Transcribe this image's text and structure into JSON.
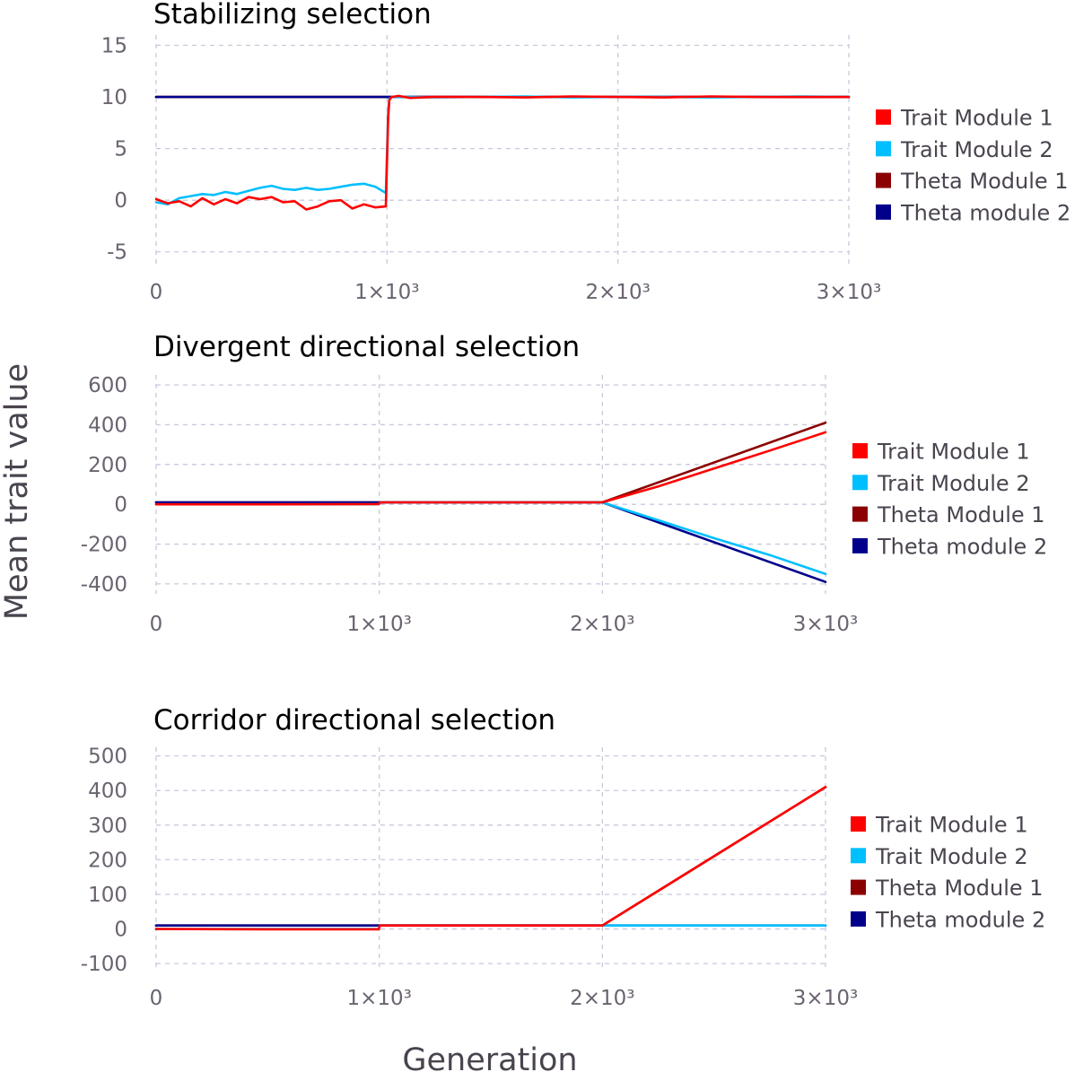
{
  "axis": {
    "ylabel": "Mean trait value",
    "xlabel": "Generation"
  },
  "legend_labels": [
    "Trait Module 1",
    "Trait Module 2",
    "Theta Module 1",
    "Theta module 2"
  ],
  "colors": {
    "trait1": "#ff0000",
    "trait2": "#00bfff",
    "theta1": "#8b0000",
    "theta2": "#00008b"
  },
  "chart_data": [
    {
      "type": "line",
      "title": "Stabilizing selection",
      "xlim": [
        0,
        3000
      ],
      "ylim": [
        -6.5,
        16
      ],
      "yticks": [
        -5,
        0,
        5,
        10,
        15
      ],
      "ytick_labels": [
        "-5",
        "0",
        "5",
        "10",
        "15"
      ],
      "xticks": [
        0,
        1000,
        2000,
        3000
      ],
      "xtick_labels": [
        "0",
        "1×10³",
        "2×10³",
        "3×10³"
      ],
      "series": [
        {
          "name": "Trait Module 1",
          "x": [
            0,
            50,
            100,
            150,
            200,
            250,
            300,
            350,
            400,
            450,
            500,
            550,
            600,
            650,
            700,
            750,
            800,
            850,
            900,
            950,
            995,
            1005,
            1010,
            1020,
            1050,
            1100,
            1200,
            1400,
            1600,
            1800,
            2000,
            2200,
            2400,
            2600,
            2800,
            3000
          ],
          "y": [
            0.1,
            -0.3,
            -0.1,
            -0.6,
            0.2,
            -0.4,
            0.1,
            -0.3,
            0.3,
            0.1,
            0.3,
            -0.2,
            -0.1,
            -0.9,
            -0.6,
            -0.1,
            0.0,
            -0.8,
            -0.4,
            -0.7,
            -0.6,
            8.0,
            9.7,
            10.0,
            10.1,
            9.9,
            10.0,
            10.0,
            9.95,
            10.05,
            10.0,
            9.95,
            10.05,
            10.0,
            10.0,
            10.0
          ]
        },
        {
          "name": "Trait Module 2",
          "x": [
            0,
            50,
            100,
            150,
            200,
            250,
            300,
            350,
            400,
            450,
            500,
            550,
            600,
            650,
            700,
            750,
            800,
            850,
            900,
            950,
            995,
            1005,
            1010,
            1020,
            1050,
            1100,
            1200,
            1400,
            1600,
            1800,
            2000,
            2200,
            2400,
            2600,
            2800,
            3000
          ],
          "y": [
            -0.2,
            -0.4,
            0.2,
            0.4,
            0.6,
            0.5,
            0.8,
            0.6,
            0.9,
            1.2,
            1.4,
            1.1,
            1.0,
            1.2,
            1.0,
            1.1,
            1.3,
            1.5,
            1.6,
            1.3,
            0.7,
            8.5,
            9.8,
            10.0,
            10.0,
            10.0,
            9.95,
            10.0,
            10.05,
            9.95,
            10.0,
            10.0,
            9.95,
            10.0,
            10.05,
            10.0
          ]
        },
        {
          "name": "Theta Module 1",
          "x": [
            0,
            3000
          ],
          "y": [
            10,
            10
          ]
        },
        {
          "name": "Theta module 2",
          "x": [
            0,
            3000
          ],
          "y": [
            10,
            10
          ]
        }
      ]
    },
    {
      "type": "line",
      "title": "Divergent directional selection",
      "xlim": [
        0,
        3000
      ],
      "ylim": [
        -450,
        650
      ],
      "yticks": [
        -400,
        -200,
        0,
        200,
        400,
        600
      ],
      "ytick_labels": [
        "-400",
        "-200",
        "0",
        "200",
        "400",
        "600"
      ],
      "xticks": [
        0,
        1000,
        2000,
        3000
      ],
      "xtick_labels": [
        "0",
        "1×10³",
        "2×10³",
        "3×10³"
      ],
      "series": [
        {
          "name": "Trait Module 1",
          "x": [
            0,
            500,
            998,
            1002,
            1500,
            2000,
            2250,
            2500,
            2750,
            3000
          ],
          "y": [
            0,
            0,
            1,
            10,
            10,
            10,
            90,
            180,
            270,
            362
          ]
        },
        {
          "name": "Trait Module 2",
          "x": [
            0,
            500,
            998,
            1002,
            1500,
            2000,
            2250,
            2500,
            2750,
            3000
          ],
          "y": [
            0,
            0,
            1,
            10,
            10,
            10,
            -80,
            -170,
            -255,
            -350
          ]
        },
        {
          "name": "Theta Module 1",
          "x": [
            0,
            1000,
            2000,
            3000
          ],
          "y": [
            10,
            10,
            10,
            410
          ]
        },
        {
          "name": "Theta module 2",
          "x": [
            0,
            1000,
            2000,
            3000
          ],
          "y": [
            10,
            10,
            10,
            -390
          ]
        }
      ]
    },
    {
      "type": "line",
      "title": "Corridor directional selection",
      "xlim": [
        0,
        3000
      ],
      "ylim": [
        -110,
        525
      ],
      "yticks": [
        -100,
        0,
        100,
        200,
        300,
        400,
        500
      ],
      "ytick_labels": [
        "-100",
        "0",
        "100",
        "200",
        "300",
        "400",
        "500"
      ],
      "xticks": [
        0,
        1000,
        2000,
        3000
      ],
      "xtick_labels": [
        "0",
        "1×10³",
        "2×10³",
        "3×10³"
      ],
      "series": [
        {
          "name": "Trait Module 1",
          "x": [
            0,
            500,
            998,
            1002,
            1500,
            2000,
            2500,
            3000
          ],
          "y": [
            0,
            -1,
            -1,
            10,
            10,
            10,
            210,
            410
          ]
        },
        {
          "name": "Trait Module 2",
          "x": [
            0,
            500,
            998,
            1002,
            1500,
            2000,
            3000
          ],
          "y": [
            0,
            0,
            0,
            10,
            10,
            10,
            10
          ]
        },
        {
          "name": "Theta Module 1",
          "x": [
            0,
            2000,
            3000
          ],
          "y": [
            10,
            10,
            410
          ]
        },
        {
          "name": "Theta module 2",
          "x": [
            0,
            2000,
            3000
          ],
          "y": [
            10,
            10,
            10
          ]
        }
      ]
    }
  ]
}
